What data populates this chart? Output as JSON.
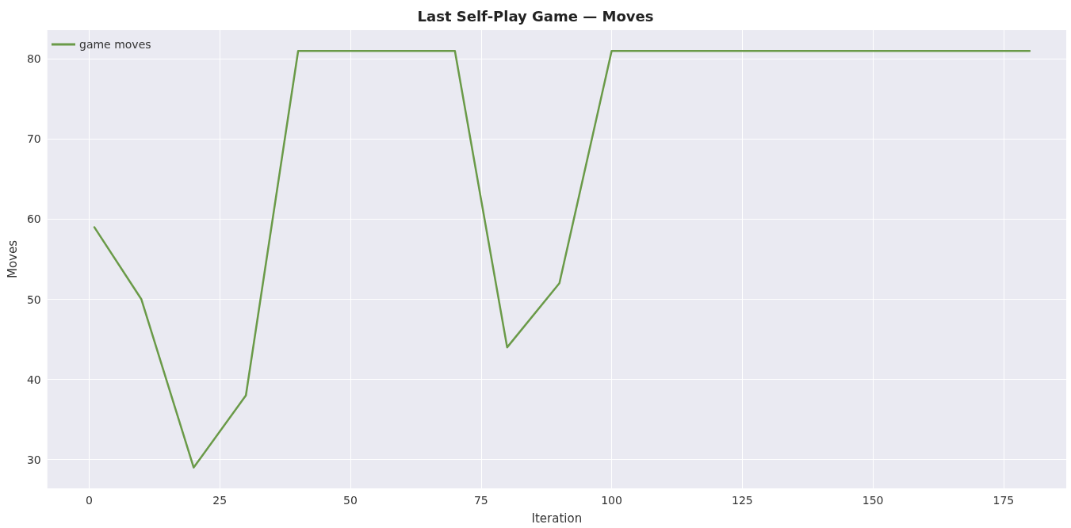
{
  "chart_data": {
    "type": "line",
    "title": "Last Self-Play Game — Moves",
    "xlabel": "Iteration",
    "ylabel": "Moves",
    "x": [
      1,
      10,
      20,
      30,
      40,
      50,
      60,
      70,
      80,
      90,
      100,
      110,
      120,
      130,
      140,
      150,
      160,
      170,
      180
    ],
    "series": [
      {
        "name": "game moves",
        "color": "#6a9a48",
        "values": [
          59,
          50,
          29,
          38,
          81,
          81,
          81,
          81,
          44,
          52,
          81,
          81,
          81,
          81,
          81,
          81,
          81,
          81,
          81
        ]
      }
    ],
    "xlim": [
      -8,
      187
    ],
    "ylim": [
      26.4,
      83.6
    ],
    "xticks": [
      0,
      25,
      50,
      75,
      100,
      125,
      150,
      175
    ],
    "yticks": [
      30,
      40,
      50,
      60,
      70,
      80
    ],
    "grid": true,
    "legend": "top left",
    "marker": "none",
    "line_style": "solid"
  }
}
